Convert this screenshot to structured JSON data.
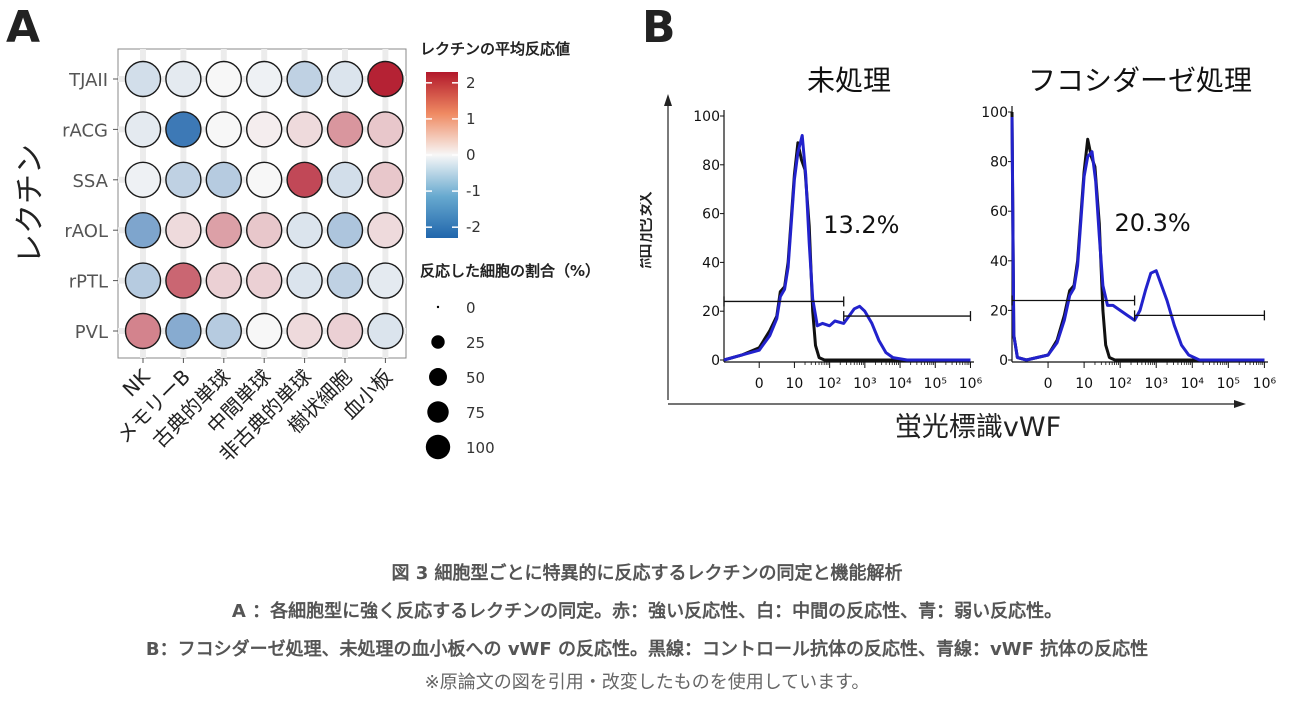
{
  "panel_a": {
    "letter": "A"
  },
  "panel_b": {
    "letter": "B",
    "y_axis_title": "細胞数",
    "x_axis_title": "蛍光標識vWF"
  },
  "caption": {
    "title": "図 3 細胞型ごとに特異的に反応するレクチンの同定と機能解析",
    "line_a": "A ：各細胞型に強く反応するレクチンの同定。赤：強い反応性、白：中間の反応性、青：弱い反応性。",
    "line_b": "B：フコシダーゼ処理、未処理の血小板への vWF の反応性。黒線：コントロール抗体の反応性、青線：vWF 抗体の反応性",
    "note": "※原論文の図を引用・改変したものを使用しています。"
  },
  "colors": {
    "high": "#b2182b",
    "mid": "#f7f7f7",
    "low": "#2166ac",
    "vwf": "#2222cc",
    "control": "#111111"
  },
  "chart_data": [
    {
      "type": "dot-heatmap",
      "ylabel": "レクチン",
      "rows": [
        "TJAII",
        "rACG",
        "SSA",
        "rAOL",
        "rPTL",
        "PVL"
      ],
      "columns": [
        "NK",
        "メモリーB",
        "古典的単球",
        "中間単球",
        "非古典的単球",
        "樹状細胞",
        "血小板"
      ],
      "mean_response": [
        [
          -0.4,
          -0.2,
          0.0,
          -0.1,
          -0.6,
          -0.3,
          2.2
        ],
        [
          -0.2,
          -2.0,
          0.0,
          0.1,
          0.3,
          1.0,
          0.5
        ],
        [
          -0.1,
          -0.6,
          -0.7,
          0.0,
          1.8,
          -0.4,
          0.5
        ],
        [
          -1.3,
          0.3,
          0.9,
          0.5,
          -0.3,
          -0.8,
          0.3
        ],
        [
          -0.7,
          1.5,
          0.4,
          0.4,
          -0.3,
          -0.6,
          -0.2
        ],
        [
          1.2,
          -1.2,
          -0.7,
          0.0,
          0.3,
          0.4,
          -0.3
        ]
      ],
      "color_legend": {
        "title": "レクチンの平均反応値",
        "ticks": [
          2,
          1,
          0,
          -1,
          -2
        ],
        "range": [
          -2.3,
          2.3
        ]
      },
      "size_legend": {
        "title": "反応した細胞の割合（%）",
        "ticks": [
          0,
          25,
          50,
          75,
          100
        ]
      }
    },
    {
      "type": "line",
      "title": "未処理",
      "y_ticks": [
        0,
        20,
        40,
        60,
        80,
        100
      ],
      "x_ticks": [
        "0",
        "10",
        "10²",
        "10³",
        "10⁴",
        "10⁵",
        "10⁶"
      ],
      "gates": [
        {
          "from": "-1",
          "to": "10^2.4",
          "y": 24
        },
        {
          "from": "10^2.4",
          "to": "10^6",
          "y": 18
        }
      ],
      "gate_percent_label": "13.2%",
      "series": [
        {
          "name": "control",
          "points": [
            [
              -1,
              0
            ],
            [
              -0.5,
              2
            ],
            [
              0,
              5
            ],
            [
              0.3,
              12
            ],
            [
              0.5,
              18
            ],
            [
              0.6,
              28
            ],
            [
              0.72,
              30
            ],
            [
              0.82,
              40
            ],
            [
              0.92,
              60
            ],
            [
              1.0,
              76
            ],
            [
              1.1,
              89
            ],
            [
              1.2,
              82
            ],
            [
              1.3,
              78
            ],
            [
              1.42,
              55
            ],
            [
              1.52,
              20
            ],
            [
              1.6,
              6
            ],
            [
              1.7,
              1
            ],
            [
              1.85,
              0
            ],
            [
              6,
              0
            ]
          ]
        },
        {
          "name": "vWF",
          "points": [
            [
              -1,
              0
            ],
            [
              -0.5,
              2
            ],
            [
              0,
              4
            ],
            [
              0.3,
              10
            ],
            [
              0.5,
              17
            ],
            [
              0.6,
              26
            ],
            [
              0.72,
              29
            ],
            [
              0.82,
              38
            ],
            [
              0.92,
              58
            ],
            [
              1.0,
              74
            ],
            [
              1.1,
              85
            ],
            [
              1.22,
              92
            ],
            [
              1.32,
              76
            ],
            [
              1.42,
              48
            ],
            [
              1.52,
              25
            ],
            [
              1.65,
              14
            ],
            [
              1.8,
              15
            ],
            [
              2.0,
              14
            ],
            [
              2.15,
              16
            ],
            [
              2.4,
              15
            ],
            [
              2.55,
              18
            ],
            [
              2.7,
              21
            ],
            [
              2.85,
              22
            ],
            [
              3.0,
              20
            ],
            [
              3.2,
              15
            ],
            [
              3.4,
              8
            ],
            [
              3.6,
              3
            ],
            [
              3.8,
              1
            ],
            [
              4.2,
              0
            ],
            [
              6,
              0
            ]
          ]
        }
      ]
    },
    {
      "type": "line",
      "title": "フコシダーゼ処理",
      "y_ticks": [
        0,
        20,
        40,
        60,
        80,
        100
      ],
      "x_ticks": [
        "0",
        "10",
        "10²",
        "10³",
        "10⁴",
        "10⁵",
        "10⁶"
      ],
      "gates": [
        {
          "from": "-1",
          "to": "10^2.4",
          "y": 24
        },
        {
          "from": "10^2.4",
          "to": "10^6",
          "y": 18
        }
      ],
      "gate_percent_label": "20.3%",
      "series": [
        {
          "name": "control",
          "points": [
            [
              -1,
              100
            ],
            [
              -0.95,
              10
            ],
            [
              -0.85,
              1
            ],
            [
              -0.6,
              0
            ],
            [
              0,
              2
            ],
            [
              0.25,
              8
            ],
            [
              0.45,
              18
            ],
            [
              0.6,
              28
            ],
            [
              0.72,
              30
            ],
            [
              0.82,
              40
            ],
            [
              0.92,
              60
            ],
            [
              1.0,
              76
            ],
            [
              1.1,
              89
            ],
            [
              1.2,
              82
            ],
            [
              1.3,
              78
            ],
            [
              1.42,
              55
            ],
            [
              1.52,
              20
            ],
            [
              1.6,
              6
            ],
            [
              1.7,
              1
            ],
            [
              1.85,
              0
            ],
            [
              6,
              0
            ]
          ]
        },
        {
          "name": "vWF",
          "points": [
            [
              -1,
              98
            ],
            [
              -0.95,
              10
            ],
            [
              -0.85,
              1
            ],
            [
              -0.6,
              0
            ],
            [
              0,
              2
            ],
            [
              0.25,
              7
            ],
            [
              0.45,
              16
            ],
            [
              0.6,
              26
            ],
            [
              0.72,
              29
            ],
            [
              0.82,
              38
            ],
            [
              0.92,
              58
            ],
            [
              1.0,
              74
            ],
            [
              1.1,
              82
            ],
            [
              1.22,
              84
            ],
            [
              1.32,
              72
            ],
            [
              1.42,
              50
            ],
            [
              1.52,
              30
            ],
            [
              1.65,
              22
            ],
            [
              1.8,
              22
            ],
            [
              2.0,
              20
            ],
            [
              2.2,
              18
            ],
            [
              2.4,
              16
            ],
            [
              2.55,
              20
            ],
            [
              2.7,
              28
            ],
            [
              2.85,
              35
            ],
            [
              3.0,
              36
            ],
            [
              3.15,
              30
            ],
            [
              3.3,
              24
            ],
            [
              3.5,
              14
            ],
            [
              3.7,
              6
            ],
            [
              3.9,
              2
            ],
            [
              4.2,
              0
            ],
            [
              6,
              0
            ]
          ]
        }
      ]
    }
  ]
}
